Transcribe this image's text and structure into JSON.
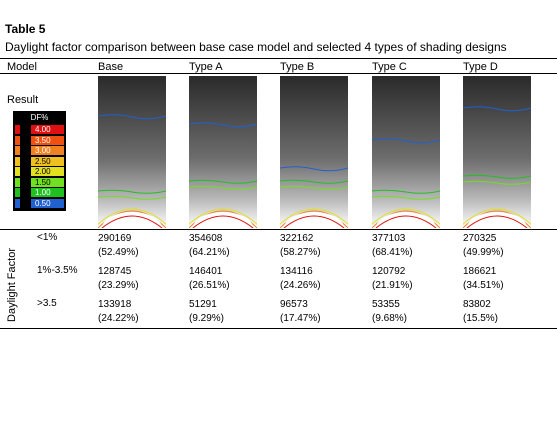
{
  "table": {
    "number": "Table 5",
    "caption": "Daylight factor comparison between base case model and selected 4 types of shading designs",
    "header": {
      "model": "Model",
      "columns": [
        "Base",
        "Type A",
        "Type B",
        "Type C",
        "Type D"
      ]
    },
    "result_label": "Result",
    "legend": {
      "title": "DF%",
      "values": [
        "4.00",
        "3.50",
        "3.00",
        "2.50",
        "2.00",
        "1.50",
        "1.00",
        "0.50"
      ],
      "colors": [
        "#e01010",
        "#f05010",
        "#f08020",
        "#f0c020",
        "#e0e020",
        "#70e020",
        "#20c020",
        "#2060d0"
      ]
    },
    "row_group_label": "Daylight Factor",
    "rows": [
      {
        "label": "<1%",
        "counts": [
          "290169",
          "354608",
          "322162",
          "377103",
          "270325"
        ],
        "percents": [
          "(52.49%)",
          "(64.21%)",
          "(58.27%)",
          "(68.41%)",
          "(49.99%)"
        ]
      },
      {
        "label": "1%-3.5%",
        "counts": [
          "128745",
          "146401",
          "134116",
          "120792",
          "186621"
        ],
        "percents": [
          "(23.29%)",
          "(26.51%)",
          "(24.26%)",
          "(21.91%)",
          "(34.51%)"
        ]
      },
      {
        "label": ">3.5",
        "counts": [
          "133918",
          "51291",
          "96573",
          "53355",
          "83802"
        ],
        "percents": [
          "(24.22%)",
          "(9.29%)",
          "(17.47%)",
          "(9.68%)",
          "(15.5%)"
        ]
      }
    ]
  }
}
